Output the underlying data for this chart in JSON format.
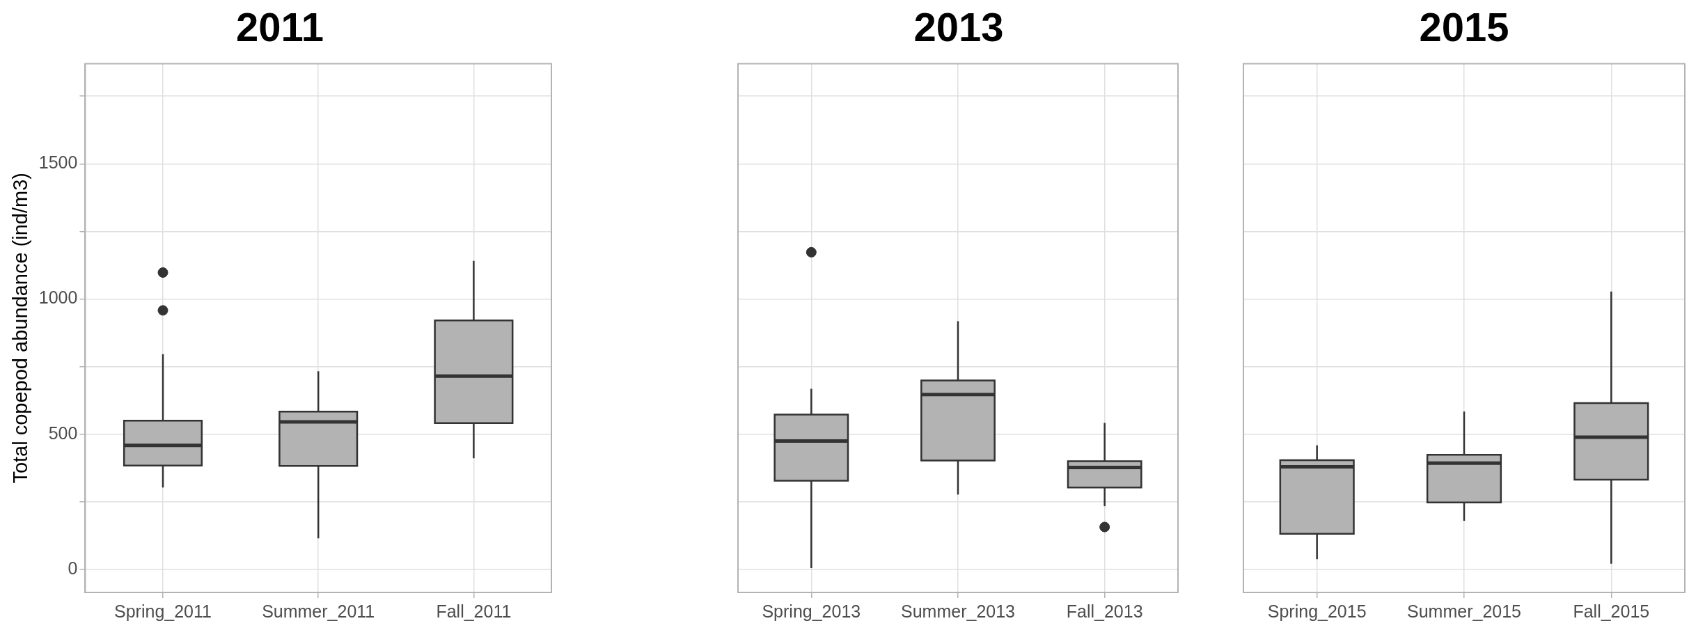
{
  "chart_data": [
    {
      "type": "box",
      "title": "2011",
      "ylabel": "Total copepod abundance (ind/m3)",
      "categories": [
        "Spring_2011",
        "Summer_2011",
        "Fall_2011"
      ],
      "ylim": [
        -85,
        1870
      ],
      "yticks": [
        0,
        {
          "value": 250,
          "label": null
        },
        500,
        {
          "value": 750,
          "label": null
        },
        1000,
        {
          "value": 1250,
          "label": null
        },
        1500,
        {
          "value": 1750,
          "label": null
        }
      ],
      "grid": true,
      "series": [
        {
          "color": "#b3b3b3",
          "boxes": [
            {
              "low": 303,
              "q1": 384,
              "median": 459,
              "q3": 550,
              "high": 796,
              "outliers": [
                958,
                1098
              ]
            },
            {
              "low": 115,
              "q1": 383,
              "median": 546,
              "q3": 584,
              "high": 733
            },
            {
              "low": 411,
              "q1": 541,
              "median": 715,
              "q3": 921,
              "high": 1141
            }
          ]
        }
      ]
    },
    {
      "type": "box",
      "title": "2013",
      "categories": [
        "Spring_2013",
        "Summer_2013",
        "Fall_2013"
      ],
      "ylim": [
        -85,
        1870
      ],
      "yticks": [
        0,
        {
          "value": 250,
          "label": null
        },
        500,
        {
          "value": 750,
          "label": null
        },
        1000,
        {
          "value": 1250,
          "label": null
        },
        1500,
        {
          "value": 1750,
          "label": null
        }
      ],
      "grid": true,
      "tick_labels": "x",
      "series": [
        {
          "color": "#b3b3b3",
          "boxes": [
            {
              "low": 5,
              "q1": 328,
              "median": 475,
              "q3": 573,
              "high": 668,
              "outliers": [
                1173
              ]
            },
            {
              "low": 277,
              "q1": 403,
              "median": 647,
              "q3": 699,
              "high": 918
            },
            {
              "low": 234,
              "q1": 303,
              "median": 377,
              "q3": 400,
              "high": 542,
              "outliers": [
                157
              ]
            }
          ]
        }
      ]
    },
    {
      "type": "box",
      "title": "2015",
      "categories": [
        "Spring_2015",
        "Summer_2015",
        "Fall_2015"
      ],
      "ylim": [
        -85,
        1870
      ],
      "yticks": [
        0,
        {
          "value": 250,
          "label": null
        },
        500,
        {
          "value": 750,
          "label": null
        },
        1000,
        {
          "value": 1250,
          "label": null
        },
        1500,
        {
          "value": 1750,
          "label": null
        }
      ],
      "grid": true,
      "tick_labels": "x",
      "series": [
        {
          "color": "#b3b3b3",
          "boxes": [
            {
              "low": 38,
              "q1": 132,
              "median": 380,
              "q3": 404,
              "high": 459
            },
            {
              "low": 180,
              "q1": 248,
              "median": 393,
              "q3": 424,
              "high": 584
            },
            {
              "low": 21,
              "q1": 332,
              "median": 489,
              "q3": 615,
              "high": 1028
            }
          ]
        }
      ]
    }
  ]
}
